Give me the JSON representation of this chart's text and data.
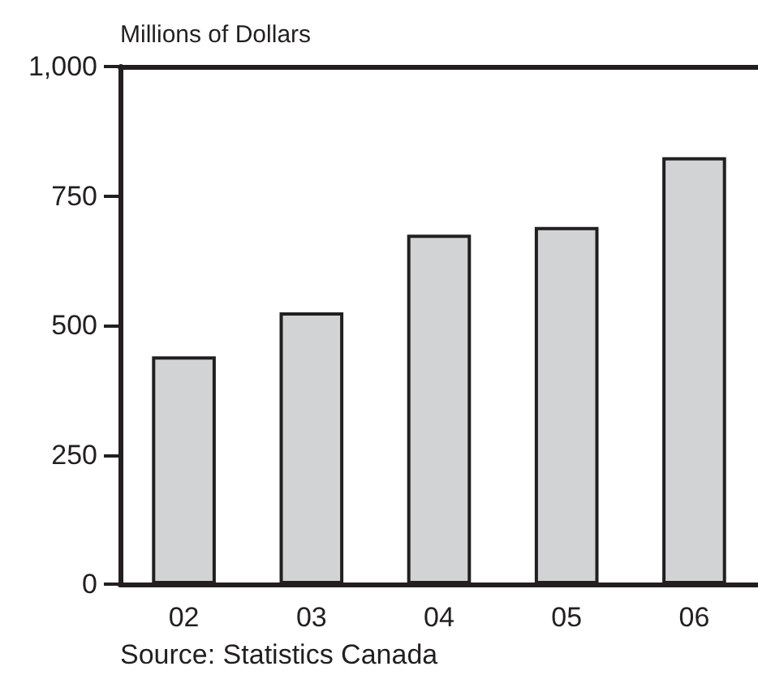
{
  "chart_data": {
    "type": "bar",
    "ylabel": "Millions of Dollars",
    "categories": [
      "02",
      "03",
      "04",
      "05",
      "06"
    ],
    "values": [
      440,
      525,
      675,
      690,
      825
    ],
    "color": "#d1d3d4",
    "ylim": [
      0,
      1000
    ],
    "yticks": [
      0,
      250,
      500,
      750,
      {
        "value": 1000,
        "label": "1,000"
      }
    ],
    "grid": false,
    "annotations": [
      "Source: Statistics Canada"
    ]
  }
}
